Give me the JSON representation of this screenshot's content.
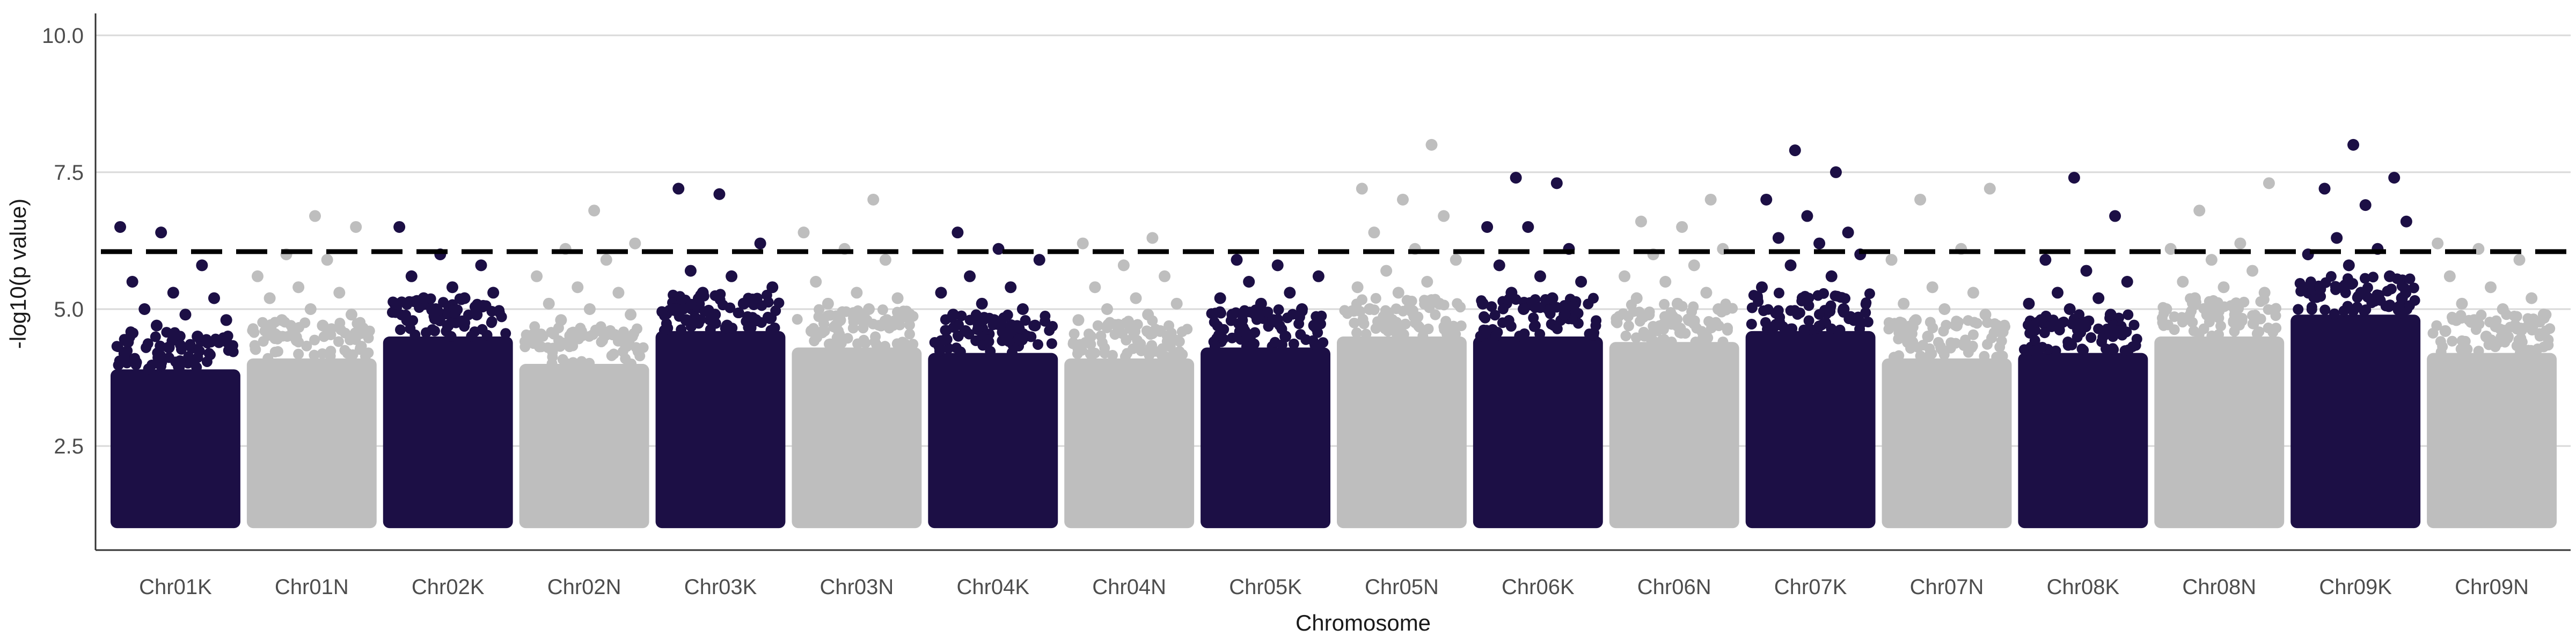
{
  "chart_data": {
    "type": "scatter",
    "subtype": "manhattan",
    "title": "",
    "xlabel": "Chromosome",
    "ylabel": "-log10(p value)",
    "ylim": [
      0.6,
      10.4
    ],
    "y_ticks": [
      "2.5",
      "5.0",
      "7.5",
      "10.0"
    ],
    "y_tick_values": [
      2.5,
      5.0,
      7.5,
      10.0
    ],
    "grid": "horizontal",
    "significance_threshold": 6.05,
    "colors": {
      "dark": "#1c0f45",
      "light": "#bebebe",
      "threshold": "#000000",
      "grid": "#d9d9d9",
      "axis": "#333333"
    },
    "categories": [
      "Chr01K",
      "Chr01N",
      "Chr02K",
      "Chr02N",
      "Chr03K",
      "Chr03N",
      "Chr04K",
      "Chr04N",
      "Chr05K",
      "Chr05N",
      "Chr06K",
      "Chr06N",
      "Chr07K",
      "Chr07N",
      "Chr08K",
      "Chr08N",
      "Chr09K",
      "Chr09N"
    ],
    "series": [
      {
        "chromosome": "Chr01K",
        "color": "dark",
        "dense_top": 3.9,
        "points": [
          6.5,
          6.4,
          5.8,
          5.5,
          5.3,
          5.2,
          5.0,
          4.9,
          4.8,
          4.7,
          4.5,
          4.4,
          4.3
        ]
      },
      {
        "chromosome": "Chr01N",
        "color": "light",
        "dense_top": 4.1,
        "points": [
          6.7,
          6.5,
          6.0,
          5.9,
          5.6,
          5.4,
          5.3,
          5.2,
          5.0,
          4.9,
          4.8,
          4.7,
          4.6
        ]
      },
      {
        "chromosome": "Chr02K",
        "color": "dark",
        "dense_top": 4.5,
        "points": [
          6.5,
          6.0,
          5.8,
          5.6,
          5.4,
          5.3,
          5.2,
          5.2,
          5.1,
          5.0,
          4.9,
          4.8,
          4.7
        ]
      },
      {
        "chromosome": "Chr02N",
        "color": "light",
        "dense_top": 4.0,
        "points": [
          6.8,
          6.2,
          6.1,
          5.9,
          5.6,
          5.4,
          5.3,
          5.1,
          5.0,
          4.9,
          4.8,
          4.6,
          4.5
        ]
      },
      {
        "chromosome": "Chr03K",
        "color": "dark",
        "dense_top": 4.6,
        "points": [
          7.2,
          7.1,
          6.2,
          5.7,
          5.6,
          5.4,
          5.3,
          5.1,
          5.0,
          4.9,
          4.8,
          4.8,
          4.7
        ]
      },
      {
        "chromosome": "Chr03N",
        "color": "light",
        "dense_top": 4.3,
        "points": [
          7.0,
          6.4,
          6.1,
          5.9,
          5.5,
          5.3,
          5.2,
          5.1,
          5.0,
          4.9,
          4.8,
          4.7,
          4.6
        ]
      },
      {
        "chromosome": "Chr04K",
        "color": "dark",
        "dense_top": 4.2,
        "points": [
          6.4,
          6.1,
          5.9,
          5.6,
          5.4,
          5.3,
          5.1,
          5.0,
          4.9,
          4.8,
          4.7,
          4.6,
          4.5
        ]
      },
      {
        "chromosome": "Chr04N",
        "color": "light",
        "dense_top": 4.1,
        "points": [
          6.3,
          6.2,
          5.8,
          5.6,
          5.4,
          5.2,
          5.1,
          5.0,
          4.9,
          4.8,
          4.7,
          4.6,
          4.5
        ]
      },
      {
        "chromosome": "Chr05K",
        "color": "dark",
        "dense_top": 4.3,
        "points": [
          5.9,
          5.8,
          5.6,
          5.5,
          5.3,
          5.2,
          5.1,
          5.0,
          4.9,
          4.8,
          4.7,
          4.6,
          4.5
        ]
      },
      {
        "chromosome": "Chr05N",
        "color": "light",
        "dense_top": 4.5,
        "points": [
          8.0,
          7.2,
          7.0,
          6.7,
          6.4,
          6.1,
          5.9,
          5.7,
          5.5,
          5.4,
          5.3,
          5.1,
          5.0
        ]
      },
      {
        "chromosome": "Chr06K",
        "color": "dark",
        "dense_top": 4.5,
        "points": [
          7.4,
          7.3,
          6.5,
          6.5,
          6.1,
          5.8,
          5.6,
          5.5,
          5.3,
          5.2,
          5.1,
          5.0,
          4.9
        ]
      },
      {
        "chromosome": "Chr06N",
        "color": "light",
        "dense_top": 4.4,
        "points": [
          7.0,
          6.6,
          6.5,
          6.1,
          6.0,
          5.8,
          5.6,
          5.5,
          5.3,
          5.2,
          5.1,
          5.0,
          4.9
        ]
      },
      {
        "chromosome": "Chr07K",
        "color": "dark",
        "dense_top": 4.6,
        "points": [
          7.9,
          7.5,
          7.0,
          6.7,
          6.4,
          6.3,
          6.2,
          6.0,
          5.8,
          5.6,
          5.4,
          5.2,
          5.0
        ]
      },
      {
        "chromosome": "Chr07N",
        "color": "light",
        "dense_top": 4.1,
        "points": [
          7.2,
          7.0,
          6.1,
          5.9,
          5.4,
          5.3,
          5.1,
          5.0,
          4.9,
          4.8,
          4.7,
          4.6,
          4.5
        ]
      },
      {
        "chromosome": "Chr08K",
        "color": "dark",
        "dense_top": 4.2,
        "points": [
          7.4,
          6.7,
          5.9,
          5.7,
          5.5,
          5.3,
          5.2,
          5.1,
          5.0,
          4.9,
          4.8,
          4.7,
          4.6
        ]
      },
      {
        "chromosome": "Chr08N",
        "color": "light",
        "dense_top": 4.5,
        "points": [
          7.3,
          6.8,
          6.2,
          6.1,
          5.9,
          5.7,
          5.5,
          5.4,
          5.3,
          5.2,
          5.1,
          5.0,
          4.9
        ]
      },
      {
        "chromosome": "Chr09K",
        "color": "dark",
        "dense_top": 4.9,
        "points": [
          8.0,
          7.4,
          7.2,
          6.9,
          6.6,
          6.3,
          6.1,
          6.0,
          5.8,
          5.6,
          5.4,
          5.3,
          5.2
        ]
      },
      {
        "chromosome": "Chr09N",
        "color": "light",
        "dense_top": 4.2,
        "points": [
          6.2,
          6.1,
          5.9,
          5.6,
          5.4,
          5.2,
          5.1,
          5.0,
          4.9,
          4.8,
          4.7,
          4.6,
          4.5
        ]
      }
    ]
  }
}
